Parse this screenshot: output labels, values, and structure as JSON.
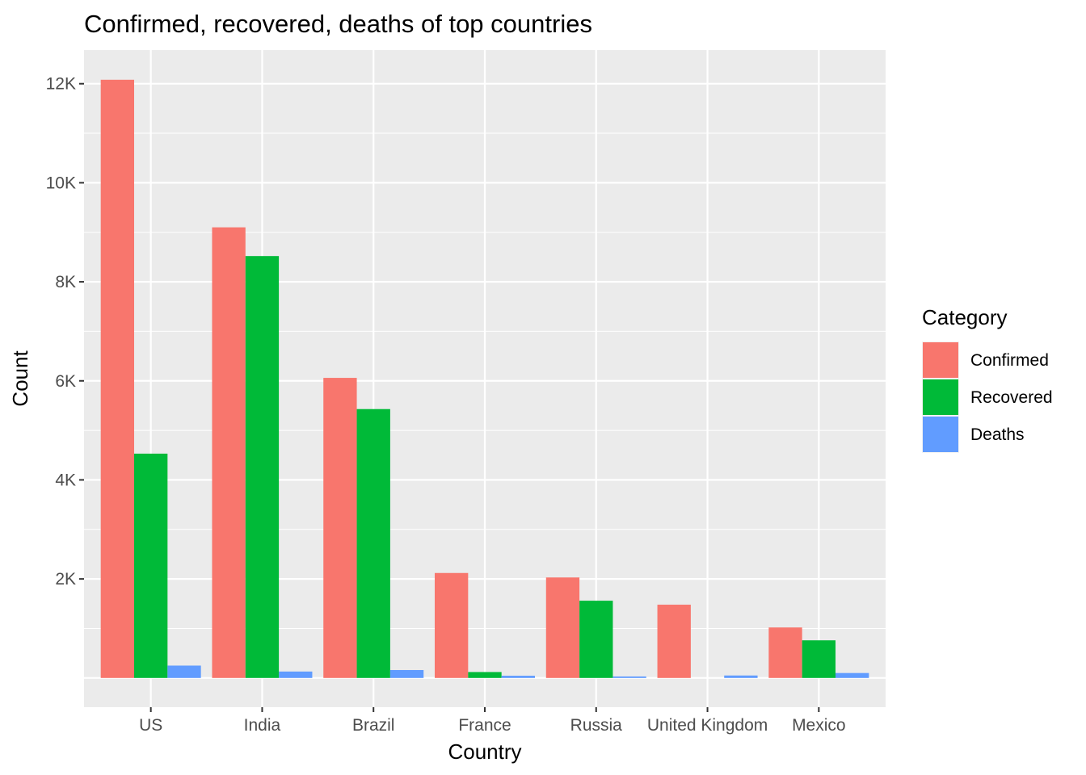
{
  "chart_data": {
    "type": "bar",
    "title": "Confirmed, recovered, deaths of top countries",
    "xlabel": "Country",
    "ylabel": "Count",
    "categories": [
      "US",
      "India",
      "Brazil",
      "France",
      "Russia",
      "United Kingdom",
      "Mexico"
    ],
    "series": [
      {
        "name": "Confirmed",
        "color": "#F8766D",
        "values": [
          12080,
          9100,
          6060,
          2120,
          2030,
          1480,
          1020
        ]
      },
      {
        "name": "Recovered",
        "color": "#00BA38",
        "values": [
          4530,
          8520,
          5430,
          120,
          1560,
          0,
          760
        ]
      },
      {
        "name": "Deaths",
        "color": "#619CFF",
        "values": [
          250,
          130,
          160,
          45,
          30,
          50,
          100
        ]
      }
    ],
    "y_ticks": [
      2000,
      4000,
      6000,
      8000,
      10000,
      12000
    ],
    "y_tick_labels": [
      "2K",
      "4K",
      "6K",
      "8K",
      "10K",
      "12K"
    ],
    "ylim": [
      -590,
      12680
    ],
    "grid": true,
    "panel_background": "#EBEBEB",
    "legend": {
      "title": "Category",
      "position": "right"
    }
  }
}
